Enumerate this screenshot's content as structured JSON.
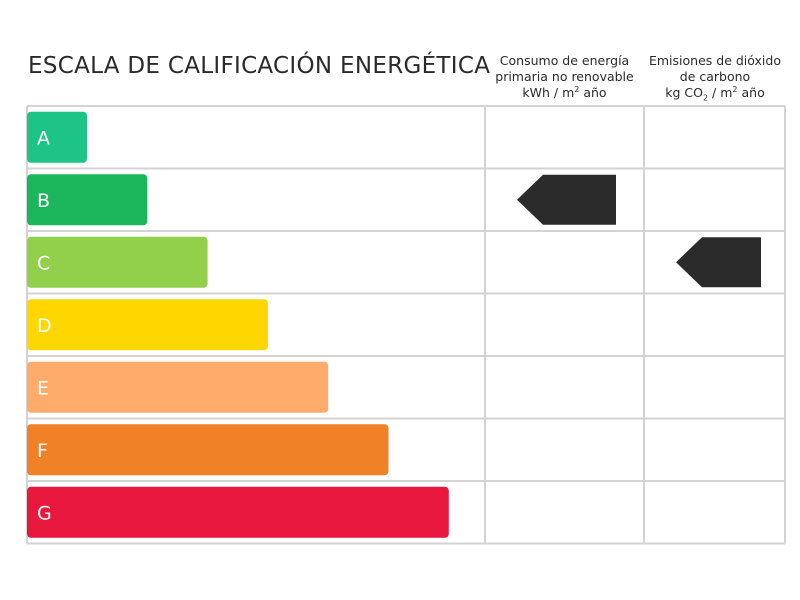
{
  "title": "ESCALA DE CALIFICACIÓN ENERGÉTICA",
  "columns": {
    "consumo": {
      "line1": "Consumo de energía",
      "line2": "primaria no renovable",
      "unit_pre": "kWh / m",
      "unit_sup": "2",
      "unit_post": " año"
    },
    "emisiones": {
      "line1": "Emisiones de dióxido",
      "line2": "de carbono",
      "unit_pre": "kg CO",
      "unit_sub": "2",
      "unit_mid": " / m",
      "unit_sup": "2",
      "unit_post": " año"
    }
  },
  "chart_data": {
    "type": "bar",
    "categories": [
      "A",
      "B",
      "C",
      "D",
      "E",
      "F",
      "G"
    ],
    "colors": [
      "#1ec386",
      "#1bb55c",
      "#92d04b",
      "#fed600",
      "#feab6b",
      "#f08126",
      "#e8173d"
    ],
    "bar_lengths": [
      1,
      2,
      3,
      4,
      5,
      6,
      7
    ],
    "grid": true,
    "consumo_rating": "B",
    "emisiones_rating": "C",
    "indicator_color": "#2b2b2b"
  }
}
